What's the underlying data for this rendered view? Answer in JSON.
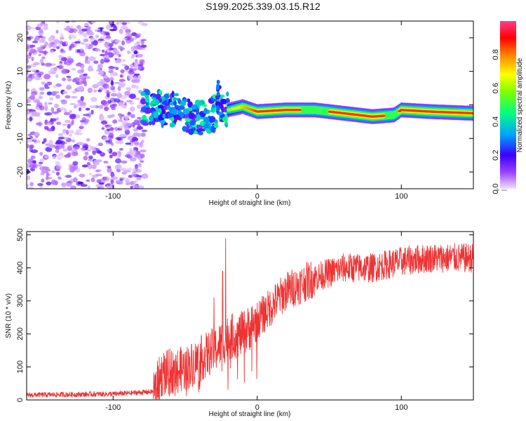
{
  "title": "S199.2025.339.03.15.R12",
  "chart_data": [
    {
      "type": "heatmap",
      "xlabel": "Height of straight line (km)",
      "ylabel": "Frequency (Hz)",
      "xlim": [
        -160,
        150
      ],
      "ylim": [
        -25,
        25
      ],
      "xticks": [
        -100,
        0,
        100
      ],
      "yticks": [
        -20,
        -10,
        0,
        10,
        20
      ],
      "colorbar": {
        "label": "Normalized spectral amplitude",
        "range": [
          0,
          1
        ],
        "ticks": [
          0.0,
          0.2,
          0.4,
          0.6,
          0.8
        ],
        "colors": [
          "#f0e0ff",
          "#7f00ff",
          "#0000ff",
          "#00c8ff",
          "#00ff00",
          "#ffff00",
          "#ff8000",
          "#ff0000",
          "#ff3c8c"
        ]
      },
      "ridge": [
        {
          "x": -80,
          "y": -1
        },
        {
          "x": -60,
          "y": -1
        },
        {
          "x": -40,
          "y": -4
        },
        {
          "x": -25,
          "y": -2
        },
        {
          "x": -10,
          "y": -0.5
        },
        {
          "x": 0,
          "y": -2
        },
        {
          "x": 20,
          "y": -1.5
        },
        {
          "x": 40,
          "y": -1.5
        },
        {
          "x": 60,
          "y": -2.5
        },
        {
          "x": 80,
          "y": -3.5
        },
        {
          "x": 95,
          "y": -3
        },
        {
          "x": 100,
          "y": -1.5
        },
        {
          "x": 120,
          "y": -2
        },
        {
          "x": 150,
          "y": -2.5
        }
      ]
    },
    {
      "type": "line",
      "xlabel": "Height of straight line (km)",
      "ylabel": "SNR (10 * v/v)",
      "xlim": [
        -160,
        150
      ],
      "ylim": [
        0,
        510
      ],
      "xticks": [
        -100,
        0,
        100
      ],
      "yticks": [
        0,
        100,
        200,
        300,
        400,
        500
      ],
      "color": "#ee3333",
      "series_trend": [
        {
          "x": -160,
          "y": 15
        },
        {
          "x": -100,
          "y": 18
        },
        {
          "x": -72,
          "y": 25
        },
        {
          "x": -66,
          "y": 80
        },
        {
          "x": -50,
          "y": 95
        },
        {
          "x": -30,
          "y": 150
        },
        {
          "x": -20,
          "y": 190
        },
        {
          "x": -10,
          "y": 200
        },
        {
          "x": 0,
          "y": 240
        },
        {
          "x": 20,
          "y": 330
        },
        {
          "x": 40,
          "y": 370
        },
        {
          "x": 60,
          "y": 400
        },
        {
          "x": 80,
          "y": 400
        },
        {
          "x": 100,
          "y": 420
        },
        {
          "x": 120,
          "y": 430
        },
        {
          "x": 150,
          "y": 430
        }
      ],
      "spikes": [
        {
          "x": -22,
          "y": 490
        },
        {
          "x": -24,
          "y": 390
        },
        {
          "x": -30,
          "y": 310
        }
      ]
    }
  ]
}
